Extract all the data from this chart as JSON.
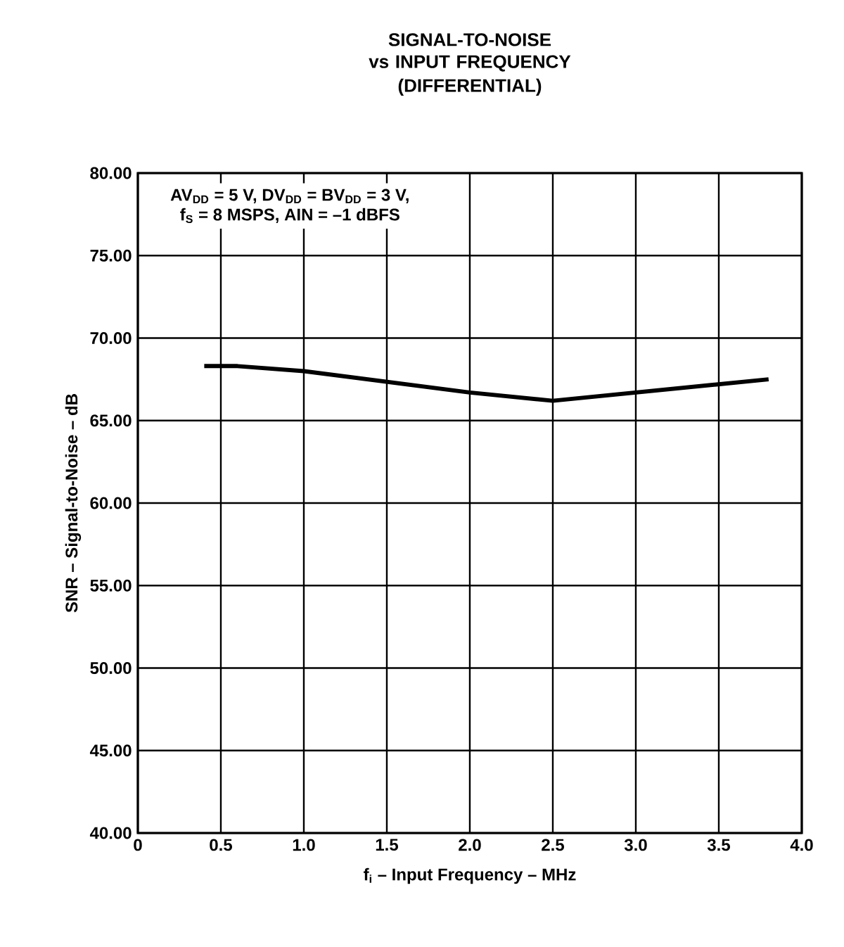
{
  "chart_data": {
    "type": "line",
    "title": "SIGNAL-TO-NOISE",
    "subtitle": "vs INPUT FREQUENCY (DIFFERENTIAL)",
    "xlabel": "f$_{i}$ – Input Frequency – MHz",
    "ylabel": "SNR – Signal-to-Noise – dB",
    "annotations": [
      "AV$_{DD}$ = 5 V, DV$_{DD}$ = BV$_{DD}$ = 3 V,",
      "f$_{S}$ = 8 MSPS, AIN = –1 dBFS"
    ],
    "x": [
      0.4,
      0.6,
      1.0,
      2.0,
      2.5,
      3.8
    ],
    "series": [
      {
        "color": "#000000",
        "values": [
          68.3,
          68.3,
          68.0,
          66.7,
          66.2,
          67.5
        ]
      }
    ],
    "xlim": [
      0,
      4
    ],
    "xticks": [
      0,
      0.5,
      {
        "value": 1,
        "label": "1.0"
      },
      1.5,
      {
        "value": 2,
        "label": "2.0"
      },
      2.5,
      {
        "value": 3,
        "label": "3.0"
      },
      3.5,
      {
        "value": 4,
        "label": "4.0"
      }
    ],
    "ylim": [
      40,
      80
    ],
    "yticks": [
      {
        "value": 40,
        "label": "40.00"
      },
      {
        "value": 45,
        "label": "45.00"
      },
      {
        "value": 50,
        "label": "50.00"
      },
      {
        "value": 55,
        "label": "55.00"
      },
      {
        "value": 60,
        "label": "60.00"
      },
      {
        "value": 65,
        "label": "65.00"
      },
      {
        "value": 70,
        "label": "70.00"
      },
      {
        "value": 75,
        "label": "75.00"
      },
      {
        "value": 80,
        "label": "80.00"
      }
    ],
    "grid": true,
    "marker": "none",
    "line_style": "solid"
  }
}
